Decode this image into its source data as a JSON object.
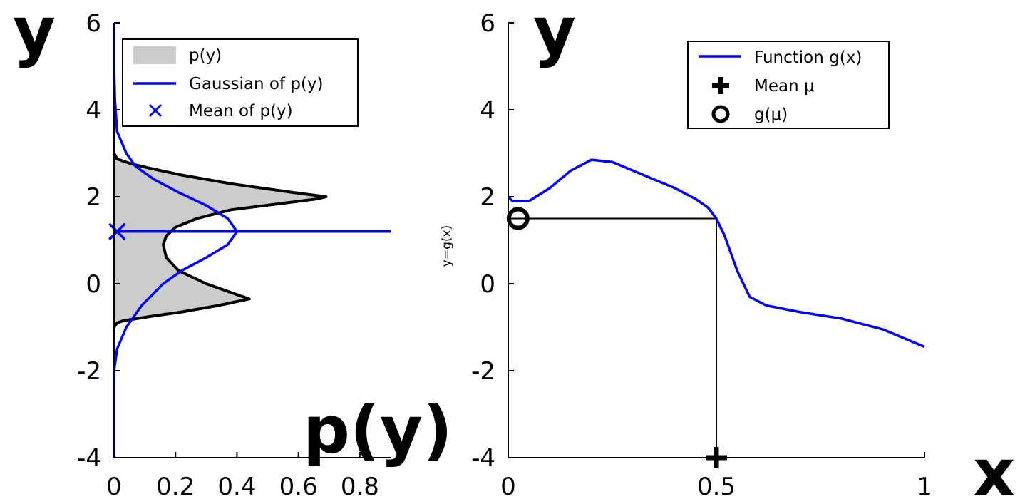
{
  "chart_data": [
    {
      "type": "area",
      "xlim": [
        0,
        0.9
      ],
      "ylim": [
        -4,
        6
      ],
      "x_ticks": [
        "0",
        "0.2",
        "0.4",
        "0.6",
        "0.8"
      ],
      "y_ticks": [
        "-4",
        "-2",
        "0",
        "2",
        "4",
        "6"
      ],
      "axis_label_x": "p(y)",
      "axis_label_y": "y",
      "legend_position": "top-right",
      "legend": [
        "p(y)",
        "Gaussian of p(y)",
        "Mean of p(y)"
      ],
      "series": [
        {
          "name": "p(y)",
          "kind": "filled-density",
          "color": "#000000",
          "fill": "#cccccc",
          "y": [
            -4,
            -1.0,
            -0.9,
            -0.85,
            -0.75,
            -0.65,
            -0.5,
            -0.35,
            0,
            0.3,
            0.6,
            0.9,
            1.1,
            1.3,
            1.5,
            1.7,
            1.85,
            1.95,
            2.0,
            2.1,
            2.3,
            2.5,
            2.65,
            2.75,
            2.82,
            2.87,
            3.0,
            6
          ],
          "density": [
            0,
            0,
            0.01,
            0.03,
            0.12,
            0.22,
            0.34,
            0.44,
            0.3,
            0.21,
            0.17,
            0.16,
            0.17,
            0.2,
            0.27,
            0.38,
            0.55,
            0.66,
            0.69,
            0.58,
            0.38,
            0.22,
            0.12,
            0.06,
            0.03,
            0.01,
            0,
            0
          ]
        },
        {
          "name": "Gaussian of p(y)",
          "kind": "line",
          "color": "#0000ff",
          "y": [
            -4,
            -3,
            -2,
            -1.5,
            -1,
            -0.5,
            0,
            0.3,
            0.6,
            0.9,
            1.2,
            1.5,
            1.8,
            2.1,
            2.4,
            2.7,
            3.0,
            3.5,
            4.0,
            4.2,
            5,
            6
          ],
          "density": [
            0.0,
            0.0,
            0.0,
            0.01,
            0.04,
            0.09,
            0.16,
            0.22,
            0.3,
            0.37,
            0.4,
            0.37,
            0.3,
            0.21,
            0.13,
            0.07,
            0.04,
            0.01,
            0.005,
            0.003,
            0.0,
            0.0
          ]
        },
        {
          "name": "Mean of p(y)",
          "kind": "marker-x",
          "color": "#0000ff",
          "x": 0.01,
          "y": 1.2
        }
      ],
      "horizontal_line": {
        "y": 1.2,
        "color": "#0000ff"
      }
    },
    {
      "type": "line",
      "xlim": [
        0,
        1
      ],
      "ylim": [
        -4,
        6
      ],
      "x_ticks": [
        "0",
        "0.5",
        "1"
      ],
      "y_ticks": [
        "-4",
        "-2",
        "0",
        "2",
        "4",
        "6"
      ],
      "axis_label_x": "x",
      "axis_label_y": "y",
      "ylabel": "y=g(x)",
      "legend_position": "top-right",
      "legend": [
        "Function g(x)",
        "Mean μ",
        "g(μ)"
      ],
      "series": [
        {
          "name": "Function g(x)",
          "kind": "line",
          "color": "#0000ff",
          "x": [
            0,
            0.01,
            0.05,
            0.1,
            0.15,
            0.2,
            0.25,
            0.3,
            0.35,
            0.4,
            0.45,
            0.48,
            0.5,
            0.52,
            0.55,
            0.58,
            0.62,
            0.7,
            0.8,
            0.9,
            1.0
          ],
          "y": [
            2.0,
            1.9,
            1.9,
            2.2,
            2.6,
            2.85,
            2.8,
            2.6,
            2.4,
            2.2,
            1.95,
            1.75,
            1.5,
            1.1,
            0.3,
            -0.3,
            -0.5,
            -0.65,
            -0.8,
            -1.05,
            -1.45
          ]
        },
        {
          "name": "Mean μ",
          "kind": "marker-plus",
          "color": "#000000",
          "x": 0.5,
          "y": -4
        },
        {
          "name": "g(μ)",
          "kind": "marker-circle",
          "color": "#000000",
          "x": 0.01,
          "y": 1.5
        }
      ],
      "guide_lines": {
        "x": 0.5,
        "y": 1.5,
        "color": "#000000"
      }
    }
  ]
}
